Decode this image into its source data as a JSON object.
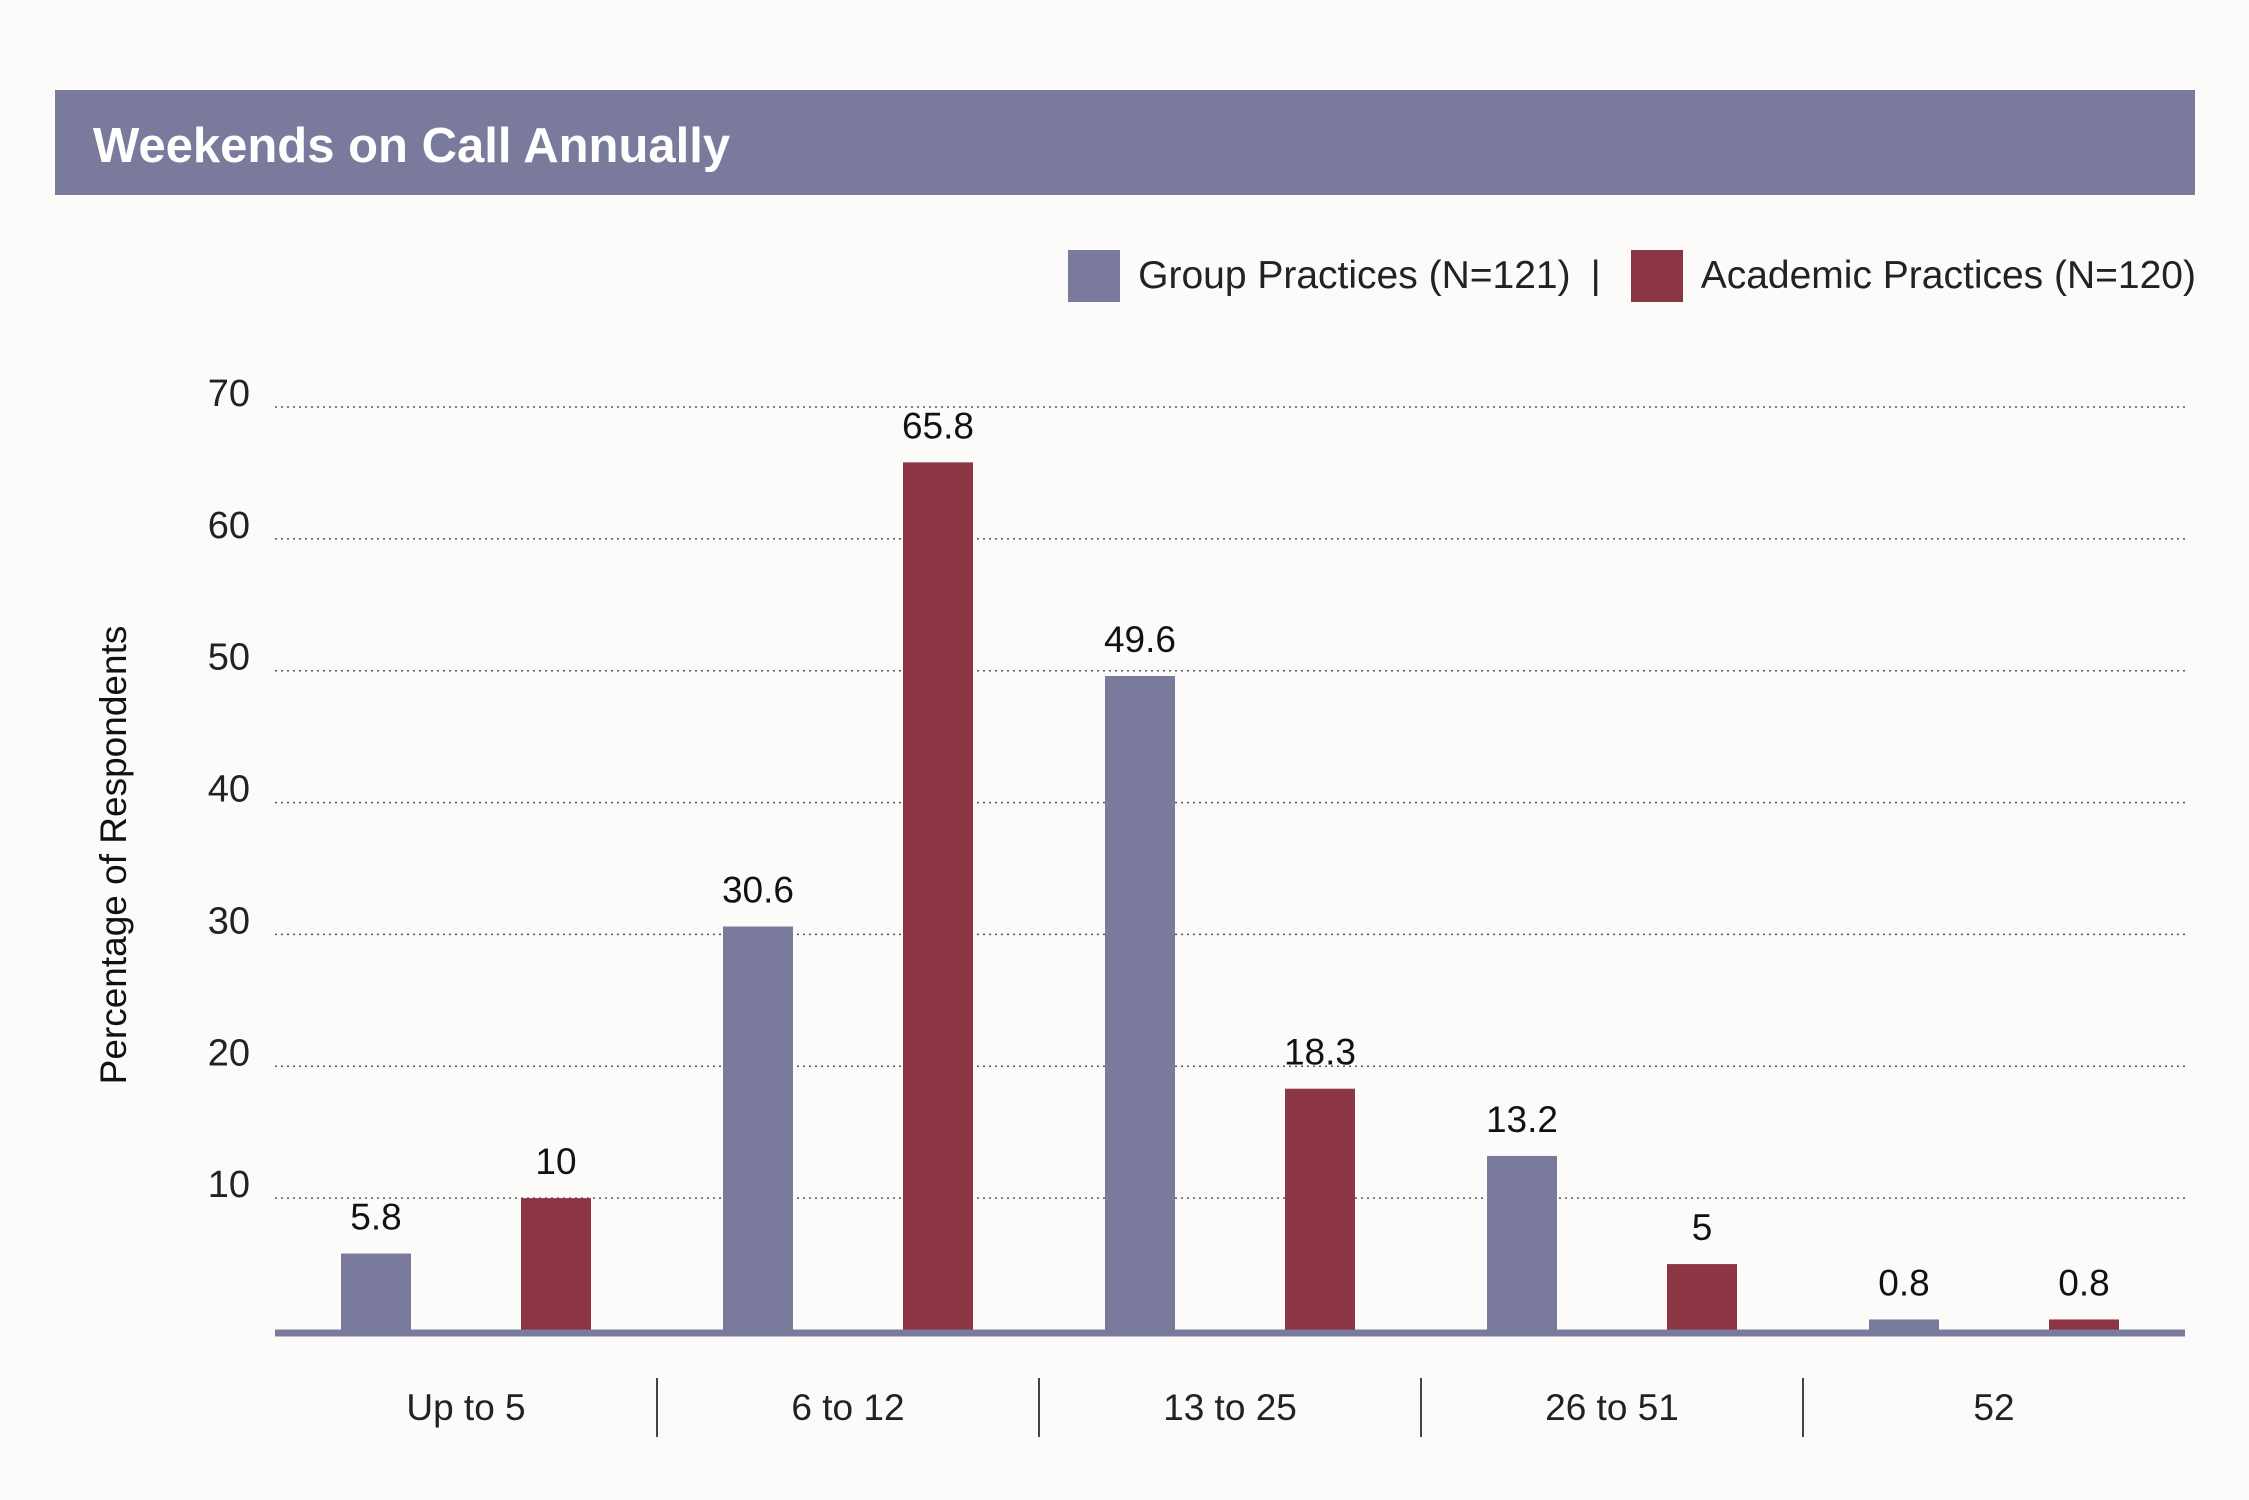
{
  "chart_data": {
    "type": "bar",
    "title": "Weekends on Call Annually",
    "ylabel": "Percentage of Respondents",
    "xlabel": "",
    "categories": [
      "Up to 5",
      "6 to 12",
      "13 to 25",
      "26 to 51",
      "52"
    ],
    "series": [
      {
        "name": "Group Practices (N=121)",
        "color": "#7a7b9c",
        "values": [
          5.8,
          30.6,
          49.6,
          13.2,
          0.8
        ]
      },
      {
        "name": "Academic Practices (N=120)",
        "color": "#8b3545",
        "values": [
          10,
          65.8,
          18.3,
          5,
          0.8
        ]
      }
    ],
    "ylim": [
      0,
      70
    ],
    "yticks": [
      10,
      20,
      30,
      40,
      50,
      60,
      70
    ],
    "grid": "dotted horizontal",
    "legend_position": "top-right"
  },
  "legend": {
    "separator": "|"
  },
  "colors": {
    "title_bar": "#7a7b9c",
    "axis": "#7a7b9c",
    "background": "#fcfbfa"
  }
}
